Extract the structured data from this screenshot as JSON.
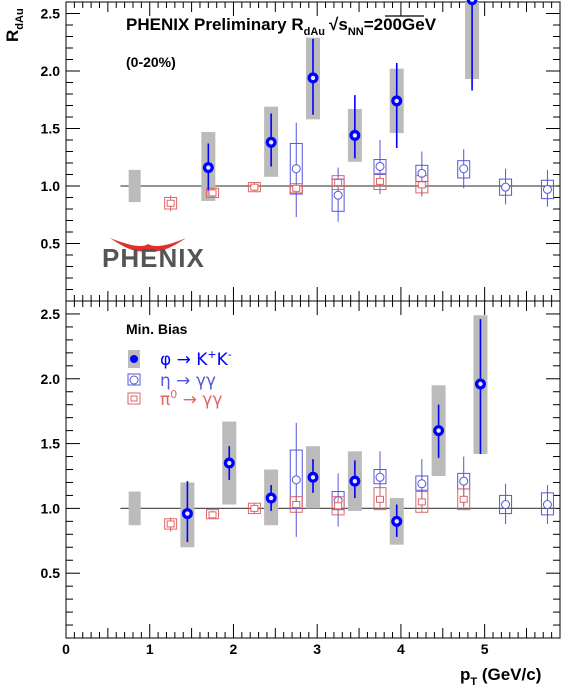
{
  "chart_data": [
    {
      "type": "scatter",
      "panel": "top",
      "title": "PHENIX Preliminary R",
      "title_sub": "dAu",
      "title_energy_pre": "s",
      "title_energy_sub": "NN",
      "title_energy_post": "=200GeV",
      "annotation": "(0-20%)",
      "ylabel": "R",
      "ylabel_sub": "dAu",
      "xlim": [
        0,
        5.9
      ],
      "ylim": [
        0,
        2.6
      ],
      "yticks": [
        "0.5",
        "1.0",
        "1.5",
        "2.0",
        "2.5"
      ],
      "reference_line": 1.0,
      "logo": "PHENIX",
      "series": [
        {
          "symbol": "filled-circle",
          "color": "#0000ff",
          "syscolor": "#bbbbbb",
          "global_sys": {
            "x": 0.82,
            "low": 0.86,
            "high": 1.14
          },
          "points": [
            {
              "x": 1.7,
              "y": 1.16,
              "elo": 0.96,
              "ehi": 1.37,
              "slo": 0.87,
              "shi": 1.47
            },
            {
              "x": 2.45,
              "y": 1.38,
              "elo": 1.17,
              "ehi": 1.63,
              "slo": 1.08,
              "shi": 1.69
            },
            {
              "x": 2.95,
              "y": 1.94,
              "elo": 1.62,
              "ehi": 2.28,
              "slo": 1.58,
              "shi": 2.29
            },
            {
              "x": 3.45,
              "y": 1.44,
              "elo": 1.24,
              "ehi": 1.79,
              "slo": 1.21,
              "shi": 1.67
            },
            {
              "x": 3.95,
              "y": 1.74,
              "elo": 1.33,
              "ehi": 2.07,
              "slo": 1.46,
              "shi": 2.02
            },
            {
              "x": 4.85,
              "y": 2.62,
              "elo": 1.83,
              "ehi": 2.8,
              "slo": 1.93,
              "shi": 2.8
            }
          ]
        },
        {
          "symbol": "open-circle",
          "color": "#5555dd",
          "global_sys": null,
          "points": [
            {
              "x": 2.75,
              "y": 1.15,
              "elo": 0.73,
              "ehi": 1.55,
              "slo": 0.93,
              "shi": 1.37
            },
            {
              "x": 3.25,
              "y": 0.92,
              "elo": 0.69,
              "ehi": 1.16,
              "slo": 0.78,
              "shi": 1.06
            },
            {
              "x": 3.75,
              "y": 1.17,
              "elo": 0.93,
              "ehi": 1.4,
              "slo": 1.1,
              "shi": 1.23
            },
            {
              "x": 4.25,
              "y": 1.11,
              "elo": 0.91,
              "ehi": 1.3,
              "slo": 1.04,
              "shi": 1.18
            },
            {
              "x": 4.75,
              "y": 1.15,
              "elo": 0.98,
              "ehi": 1.32,
              "slo": 1.07,
              "shi": 1.22
            },
            {
              "x": 5.25,
              "y": 0.99,
              "elo": 0.84,
              "ehi": 1.15,
              "slo": 0.92,
              "shi": 1.06
            },
            {
              "x": 5.75,
              "y": 0.97,
              "elo": 0.82,
              "ehi": 1.14,
              "slo": 0.89,
              "shi": 1.05
            }
          ]
        },
        {
          "symbol": "open-square",
          "color": "#dd6666",
          "global_sys": null,
          "points": [
            {
              "x": 1.25,
              "y": 0.85,
              "elo": 0.78,
              "ehi": 0.92,
              "slo": 0.8,
              "shi": 0.9
            },
            {
              "x": 1.75,
              "y": 0.94,
              "elo": 0.9,
              "ehi": 0.98,
              "slo": 0.9,
              "shi": 0.98
            },
            {
              "x": 2.25,
              "y": 0.99,
              "elo": 0.95,
              "ehi": 1.03,
              "slo": 0.95,
              "shi": 1.03
            },
            {
              "x": 2.75,
              "y": 0.98,
              "elo": 0.94,
              "ehi": 1.02,
              "slo": 0.94,
              "shi": 1.02
            },
            {
              "x": 3.25,
              "y": 1.03,
              "elo": 0.97,
              "ehi": 1.09,
              "slo": 0.97,
              "shi": 1.09
            },
            {
              "x": 3.75,
              "y": 1.04,
              "elo": 0.97,
              "ehi": 1.11,
              "slo": 0.97,
              "shi": 1.11
            },
            {
              "x": 4.25,
              "y": 1.01,
              "elo": 0.94,
              "ehi": 1.09,
              "slo": 0.94,
              "shi": 1.09
            }
          ]
        }
      ]
    },
    {
      "type": "scatter",
      "panel": "bottom",
      "annotation": "Min. Bias",
      "xlabel": "p",
      "xlabel_sub": "T",
      "xlabel_post": " (GeV/c)",
      "xlim": [
        0,
        5.9
      ],
      "ylim": [
        0,
        2.6
      ],
      "xticks": [
        "0",
        "1",
        "2",
        "3",
        "4",
        "5"
      ],
      "yticks": [
        "0.5",
        "1.0",
        "1.5",
        "2.0",
        "2.5"
      ],
      "reference_line": 1.0,
      "legend": {
        "placement": "top-left",
        "entries": [
          {
            "label": "φ → K",
            "sup": "+",
            "label2": "K",
            "sup2": "-",
            "color": "#0000ff",
            "symbol": "filled-circle"
          },
          {
            "label": "η → γγ",
            "color": "#5555dd",
            "symbol": "open-circle"
          },
          {
            "label": "π",
            "sup": "0",
            "label2": " → γγ",
            "color": "#dd6666",
            "symbol": "open-square"
          }
        ]
      },
      "series": [
        {
          "symbol": "filled-circle",
          "color": "#0000ff",
          "syscolor": "#bbbbbb",
          "global_sys": {
            "x": 0.82,
            "low": 0.87,
            "high": 1.13
          },
          "points": [
            {
              "x": 1.45,
              "y": 0.96,
              "elo": 0.74,
              "ehi": 1.21,
              "slo": 0.7,
              "shi": 1.2
            },
            {
              "x": 1.95,
              "y": 1.35,
              "elo": 1.22,
              "ehi": 1.48,
              "slo": 1.03,
              "shi": 1.67
            },
            {
              "x": 2.45,
              "y": 1.08,
              "elo": 0.98,
              "ehi": 1.18,
              "slo": 0.87,
              "shi": 1.3
            },
            {
              "x": 2.95,
              "y": 1.24,
              "elo": 1.12,
              "ehi": 1.38,
              "slo": 1.0,
              "shi": 1.48
            },
            {
              "x": 3.45,
              "y": 1.21,
              "elo": 1.08,
              "ehi": 1.37,
              "slo": 0.98,
              "shi": 1.44
            },
            {
              "x": 3.95,
              "y": 0.9,
              "elo": 0.78,
              "ehi": 1.03,
              "slo": 0.72,
              "shi": 1.08
            },
            {
              "x": 4.45,
              "y": 1.6,
              "elo": 1.39,
              "ehi": 1.8,
              "slo": 1.25,
              "shi": 1.95
            },
            {
              "x": 4.95,
              "y": 1.96,
              "elo": 1.42,
              "ehi": 2.46,
              "slo": 1.42,
              "shi": 2.49
            }
          ]
        },
        {
          "symbol": "open-circle",
          "color": "#5555dd",
          "global_sys": null,
          "points": [
            {
              "x": 2.75,
              "y": 1.22,
              "elo": 0.78,
              "ehi": 1.66,
              "slo": 1.0,
              "shi": 1.45
            },
            {
              "x": 3.25,
              "y": 1.06,
              "elo": 0.86,
              "ehi": 1.27,
              "slo": 0.99,
              "shi": 1.13
            },
            {
              "x": 3.75,
              "y": 1.24,
              "elo": 1.06,
              "ehi": 1.44,
              "slo": 1.19,
              "shi": 1.3
            },
            {
              "x": 4.25,
              "y": 1.19,
              "elo": 1.01,
              "ehi": 1.38,
              "slo": 1.14,
              "shi": 1.25
            },
            {
              "x": 4.75,
              "y": 1.21,
              "elo": 1.02,
              "ehi": 1.4,
              "slo": 1.15,
              "shi": 1.27
            },
            {
              "x": 5.25,
              "y": 1.03,
              "elo": 0.88,
              "ehi": 1.19,
              "slo": 0.96,
              "shi": 1.1
            },
            {
              "x": 5.75,
              "y": 1.03,
              "elo": 0.88,
              "ehi": 1.18,
              "slo": 0.95,
              "shi": 1.12
            }
          ]
        },
        {
          "symbol": "open-square",
          "color": "#dd6666",
          "global_sys": null,
          "points": [
            {
              "x": 1.25,
              "y": 0.88,
              "elo": 0.82,
              "ehi": 0.93,
              "slo": 0.84,
              "shi": 0.92
            },
            {
              "x": 1.75,
              "y": 0.95,
              "elo": 0.92,
              "ehi": 0.98,
              "slo": 0.92,
              "shi": 0.99
            },
            {
              "x": 2.25,
              "y": 1.0,
              "elo": 0.96,
              "ehi": 1.04,
              "slo": 0.96,
              "shi": 1.04
            },
            {
              "x": 2.75,
              "y": 1.03,
              "elo": 0.97,
              "ehi": 1.09,
              "slo": 0.97,
              "shi": 1.09
            },
            {
              "x": 3.25,
              "y": 1.02,
              "elo": 0.95,
              "ehi": 1.09,
              "slo": 0.95,
              "shi": 1.09
            },
            {
              "x": 3.75,
              "y": 1.07,
              "elo": 0.99,
              "ehi": 1.16,
              "slo": 0.99,
              "shi": 1.16
            },
            {
              "x": 4.25,
              "y": 1.05,
              "elo": 0.97,
              "ehi": 1.13,
              "slo": 0.97,
              "shi": 1.13
            },
            {
              "x": 4.75,
              "y": 1.07,
              "elo": 0.99,
              "ehi": 1.15,
              "slo": 0.99,
              "shi": 1.15
            }
          ]
        }
      ]
    }
  ]
}
